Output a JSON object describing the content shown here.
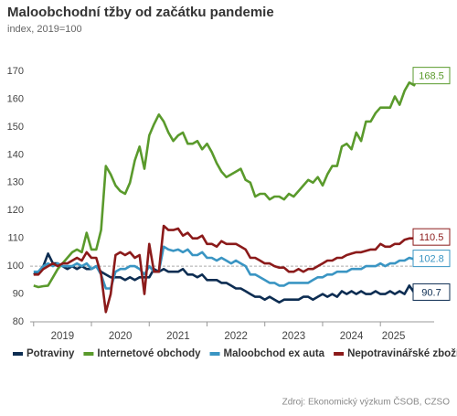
{
  "chart_data": {
    "type": "line",
    "title": "Maloobchodní tžby od začátku pandemie",
    "subtitle": "index, 2019=100",
    "source": "Zdroj: Ekonomický výzkum ČSOB, CZSO",
    "x": [
      2019,
      2019.083,
      2019.167,
      2019.25,
      2019.333,
      2019.417,
      2019.5,
      2019.583,
      2019.667,
      2019.75,
      2019.833,
      2019.917,
      2020,
      2020.083,
      2020.167,
      2020.25,
      2020.333,
      2020.417,
      2020.5,
      2020.583,
      2020.667,
      2020.75,
      2020.833,
      2020.917,
      2021,
      2021.083,
      2021.167,
      2021.25,
      2021.333,
      2021.417,
      2021.5,
      2021.583,
      2021.667,
      2021.75,
      2021.833,
      2021.917,
      2022,
      2022.083,
      2022.167,
      2022.25,
      2022.333,
      2022.417,
      2022.5,
      2022.583,
      2022.667,
      2022.75,
      2022.833,
      2022.917,
      2023,
      2023.083,
      2023.167,
      2023.25,
      2023.333,
      2023.417,
      2023.5,
      2023.583,
      2023.667,
      2023.75,
      2023.833,
      2023.917,
      2024,
      2024.083,
      2024.167,
      2024.25,
      2024.333,
      2024.417,
      2024.5,
      2024.583,
      2024.667,
      2024.75,
      2024.833,
      2024.917,
      2025,
      2025.083,
      2025.167,
      2025.25,
      2025.333,
      2025.417,
      2025.5,
      2025.583,
      2025.667,
      2025.75
    ],
    "series": [
      {
        "name": "Potraviny",
        "color": "#0d2d52",
        "values": [
          97,
          98,
          100,
          104.5,
          101,
          101,
          100,
          99,
          100,
          99,
          100,
          99,
          99,
          100,
          98,
          97,
          96,
          96,
          96,
          95,
          96,
          95,
          96,
          96,
          96,
          99,
          98,
          99,
          98,
          98,
          98,
          99,
          97,
          97,
          96,
          97,
          95,
          95,
          95,
          94,
          94,
          93,
          92,
          92,
          91,
          90,
          89,
          89,
          88,
          89,
          88,
          87,
          88,
          88,
          88,
          88,
          89,
          89,
          88,
          89,
          90,
          89,
          90,
          89,
          91,
          90,
          91,
          90,
          91,
          90,
          90,
          91,
          90,
          90,
          91,
          90,
          91,
          90,
          93,
          90.5,
          91,
          90.7
        ]
      },
      {
        "name": "Internetové obchody",
        "color": "#5a9a2c",
        "values": [
          93,
          92.5,
          92.8,
          93,
          96,
          99,
          101,
          103,
          105,
          106,
          105,
          112,
          106,
          106,
          113,
          136,
          133,
          129,
          127,
          126,
          130,
          138,
          143,
          135,
          147,
          151,
          154.5,
          152,
          148,
          145,
          147,
          148,
          144,
          144,
          145,
          142,
          144,
          141,
          137,
          134,
          132,
          133,
          134,
          135,
          131,
          130,
          125,
          126,
          126,
          124,
          125,
          125,
          124,
          126,
          125,
          127,
          129,
          131,
          130,
          132,
          129,
          133,
          136,
          136,
          143,
          144,
          142,
          148,
          145,
          152,
          152,
          155,
          157,
          157,
          157,
          161,
          158,
          163,
          166,
          165,
          170,
          168.5
        ]
      },
      {
        "name": "Maloobchod ex auta",
        "color": "#3a95c3",
        "values": [
          98,
          98,
          100,
          101,
          100,
          101,
          100,
          100,
          100,
          101,
          100,
          101,
          99,
          100,
          97,
          92,
          92,
          98,
          99,
          99,
          100,
          100,
          99,
          97,
          100,
          98,
          98,
          107,
          106,
          105.5,
          106,
          105,
          106,
          104,
          104,
          105,
          103,
          103,
          102,
          103,
          102,
          101,
          102,
          101,
          100,
          97,
          97,
          96,
          95,
          94,
          94,
          93,
          93,
          94,
          94,
          94,
          94,
          94,
          95,
          96,
          96,
          97,
          97,
          98,
          98,
          98,
          99,
          99,
          99,
          100,
          100,
          100,
          101,
          100,
          101,
          101,
          102,
          102,
          103,
          102.5,
          103,
          102.8
        ]
      },
      {
        "name": "Nepotravinářské zboží",
        "color": "#8b1a1a",
        "values": [
          97,
          97,
          99,
          100,
          101,
          100,
          101,
          101,
          102,
          103,
          102,
          105,
          103,
          103,
          97,
          83.5,
          90,
          104,
          105,
          104,
          105,
          103,
          104,
          90,
          108,
          98,
          98,
          114.5,
          113,
          113,
          113.5,
          111,
          112,
          110,
          110,
          111,
          108,
          108,
          107,
          109,
          108,
          108,
          108,
          107,
          106,
          103,
          103,
          102,
          101,
          101,
          100,
          99.5,
          99.5,
          98,
          98,
          99,
          98,
          99,
          99,
          100,
          101,
          102,
          102,
          103,
          103,
          104,
          104.5,
          105,
          105,
          105.5,
          106,
          106,
          108,
          107,
          107,
          108,
          108,
          109.5,
          110,
          110,
          110.5,
          110.5
        ]
      }
    ],
    "xlim": [
      2018.94,
      2025.93
    ],
    "xticks": [
      2019,
      2020,
      2021,
      2022,
      2023,
      2024,
      2025
    ],
    "ylim": [
      80,
      172
    ],
    "yticks": [
      80,
      90,
      100,
      110,
      120,
      130,
      140,
      150,
      160,
      170
    ],
    "reference_line": 100,
    "grid": false,
    "legend": "bottom"
  }
}
